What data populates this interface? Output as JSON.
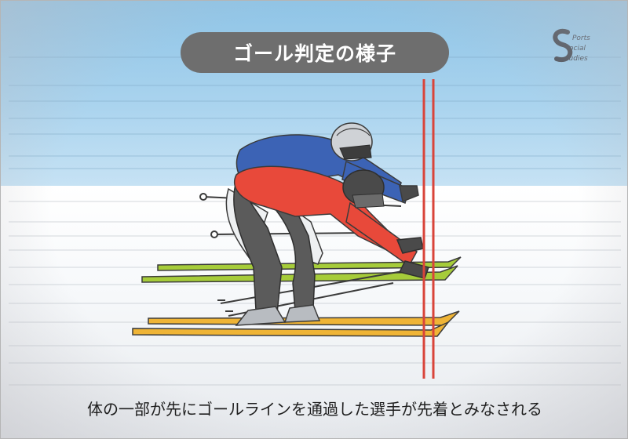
{
  "title": "ゴール判定の様子",
  "caption": "体の一部が先にゴールラインを通過した選手が先着とみなされる",
  "logo_text": "SPORTS SOCIAL STUDIES",
  "colors": {
    "sky": "#a9d3ee",
    "snow": "#ffffff",
    "title_bg": "#6e6e6e",
    "goal_line": "#d9443a",
    "red_jacket": "#e8493a",
    "blue_jacket": "#3c63b5",
    "ski_green": "#a6cc3a",
    "ski_orange": "#efb436",
    "pants_gray": "#5b5b5b"
  },
  "icons": [
    "goal-line",
    "skier-red",
    "skier-blue",
    "ski-pole"
  ]
}
